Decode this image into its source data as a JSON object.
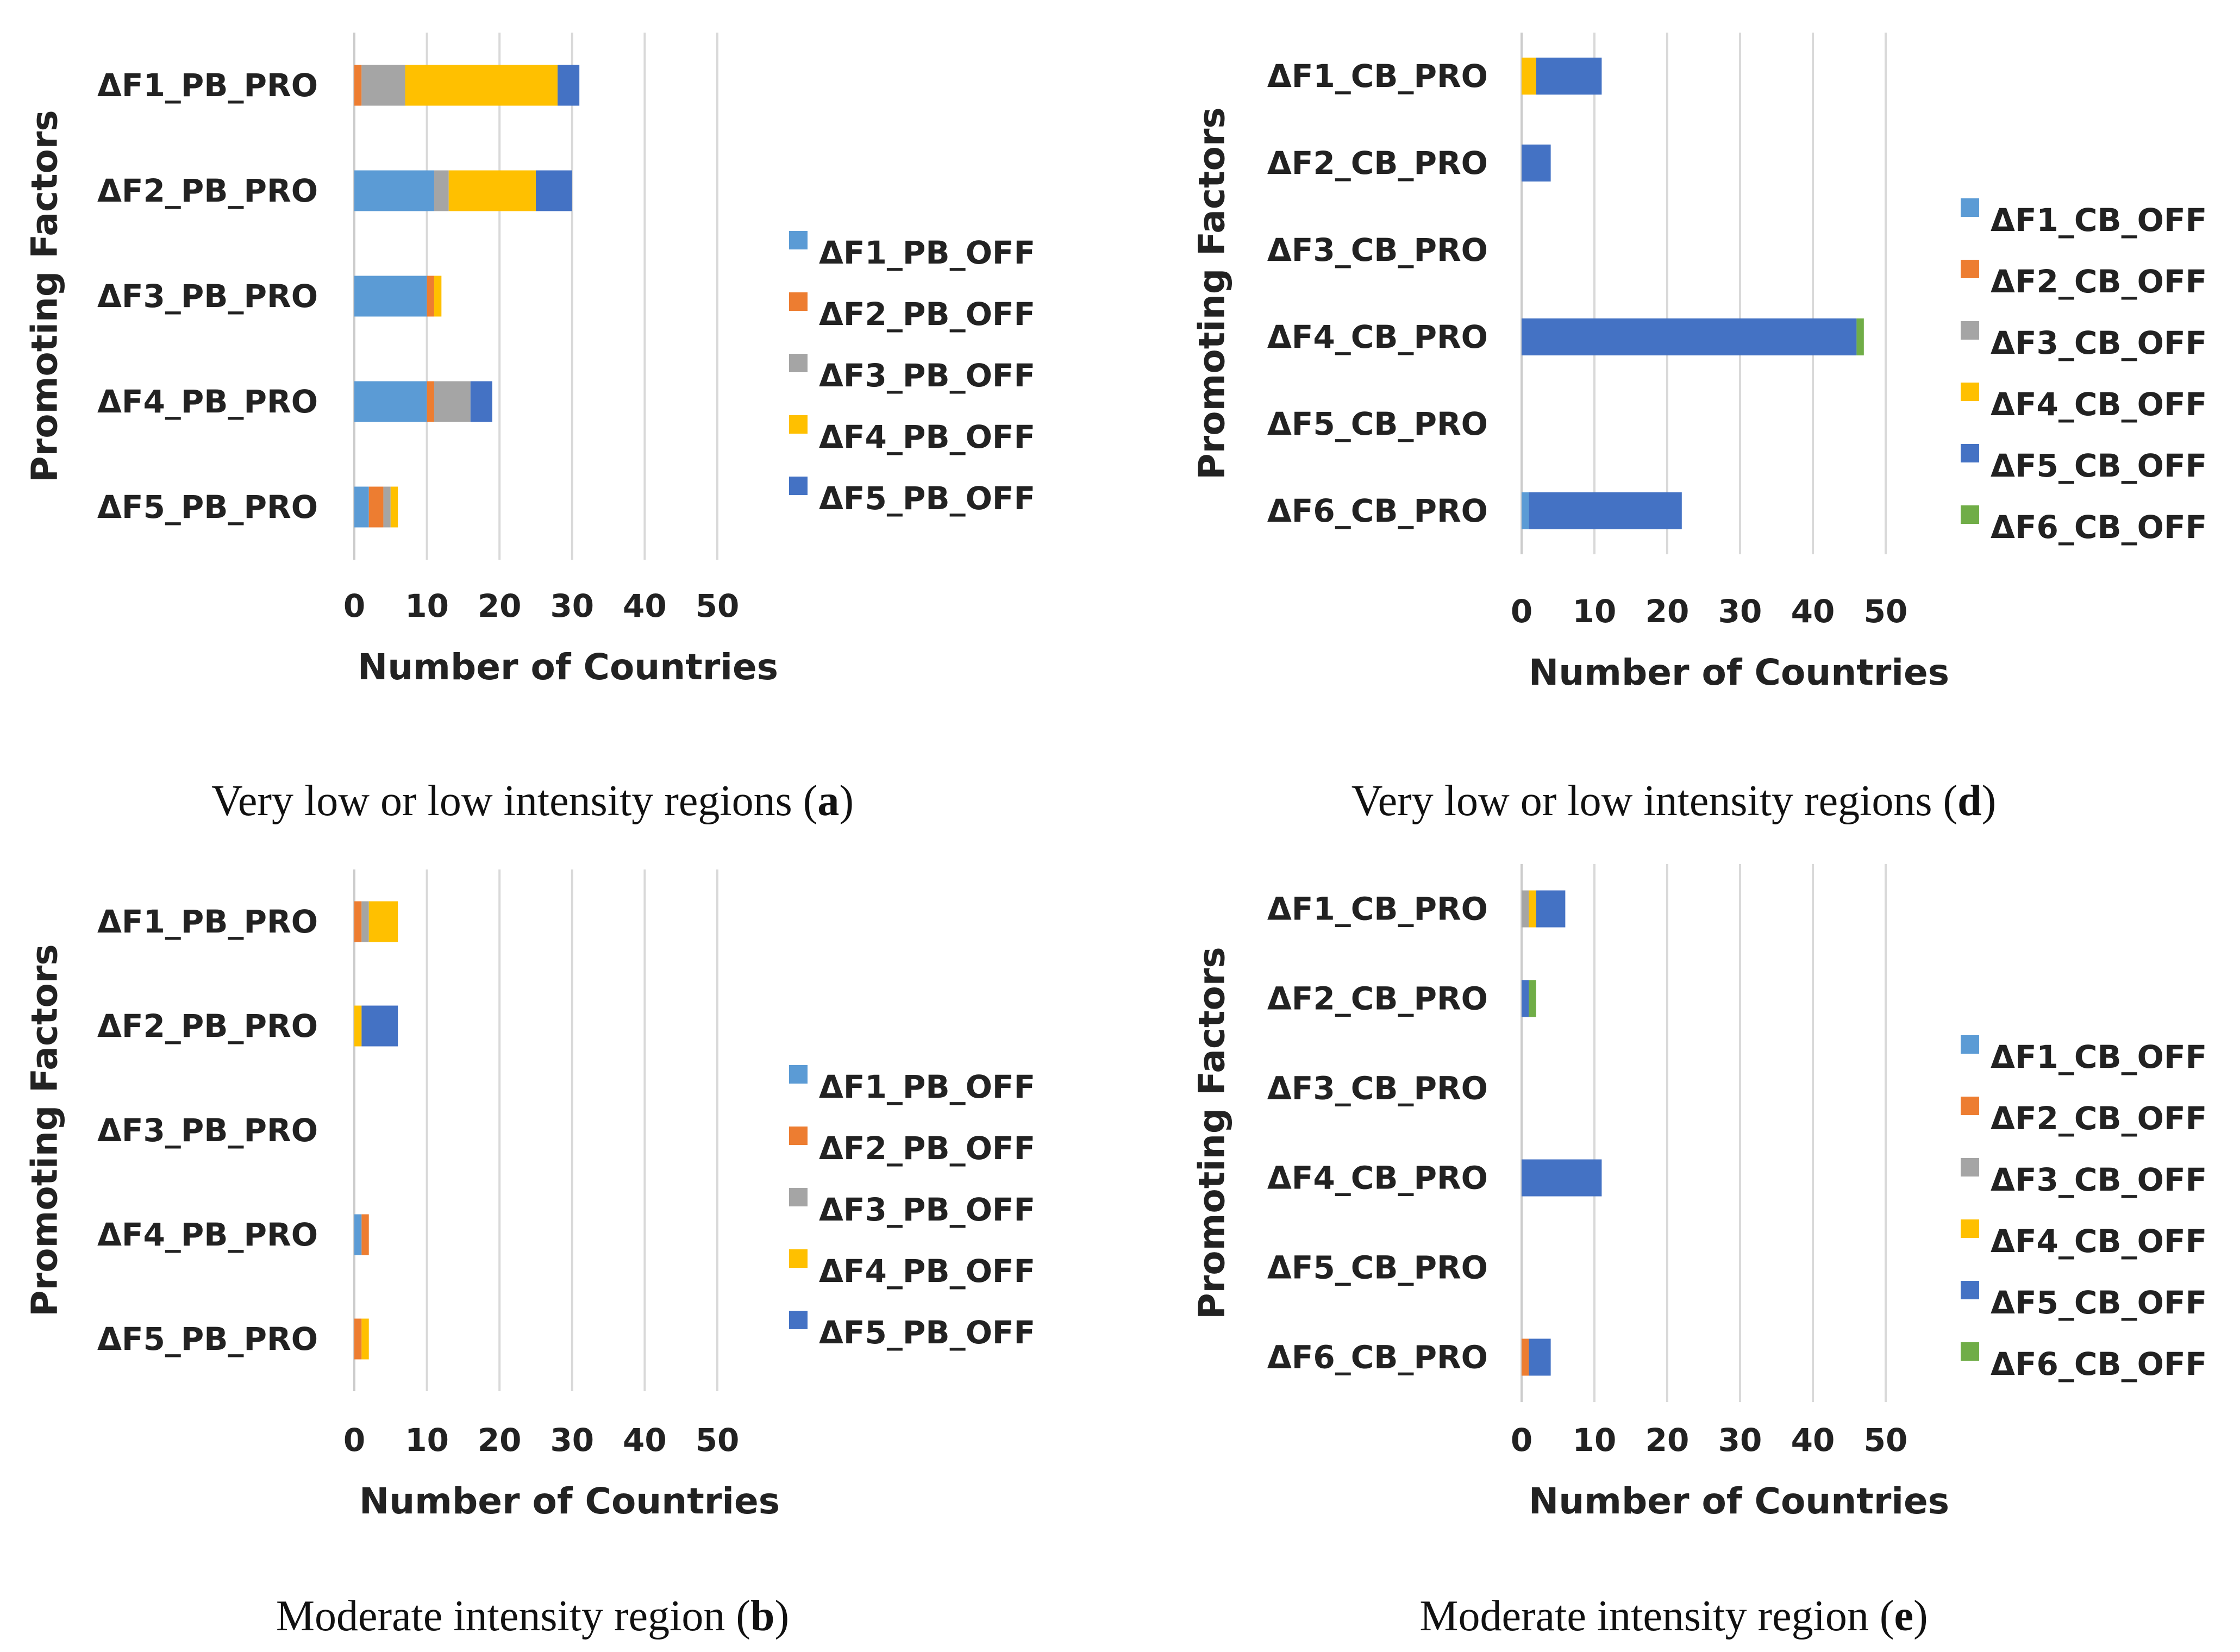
{
  "series_colors": {
    "F1": "#5b9bd5",
    "F2": "#ed7d31",
    "F3": "#a5a5a5",
    "F4": "#ffc000",
    "F5": "#4472c4",
    "F6": "#70ad47"
  },
  "chart_data": [
    {
      "id": "a",
      "type": "bar",
      "orientation": "horizontal",
      "stacked": true,
      "caption": {
        "text": "Very low or low intensity regions (",
        "letter": "a",
        "close": ")"
      },
      "xlabel": "Number of Countries",
      "ylabel": "Promoting Factors",
      "xlim": [
        0,
        50
      ],
      "xticks": [
        "0",
        "10",
        "20",
        "30",
        "40",
        "50"
      ],
      "grid": true,
      "legend": "right",
      "categories": [
        "ΔF1_PB_PRO",
        "ΔF2_PB_PRO",
        "ΔF3_PB_PRO",
        "ΔF4_PB_PRO",
        "ΔF5_PB_PRO"
      ],
      "series": [
        {
          "name": "ΔF1_PB_OFF",
          "key": "F1",
          "values": [
            0,
            11,
            10,
            10,
            2
          ]
        },
        {
          "name": "ΔF2_PB_OFF",
          "key": "F2",
          "values": [
            1,
            0,
            1,
            1,
            2
          ]
        },
        {
          "name": "ΔF3_PB_OFF",
          "key": "F3",
          "values": [
            6,
            2,
            0,
            5,
            1
          ]
        },
        {
          "name": "ΔF4_PB_OFF",
          "key": "F4",
          "values": [
            21,
            12,
            1,
            0,
            1
          ]
        },
        {
          "name": "ΔF5_PB_OFF",
          "key": "F5",
          "values": [
            3,
            5,
            0,
            3,
            0
          ]
        }
      ]
    },
    {
      "id": "d",
      "type": "bar",
      "orientation": "horizontal",
      "stacked": true,
      "caption": {
        "text": "Very low or low intensity regions (",
        "letter": "d",
        "close": ")"
      },
      "xlabel": "Number of Countries",
      "ylabel": "Promoting Factors",
      "xlim": [
        0,
        50
      ],
      "xticks": [
        "0",
        "10",
        "20",
        "30",
        "40",
        "50"
      ],
      "grid": true,
      "legend": "right",
      "categories": [
        "ΔF1_CB_PRO",
        "ΔF2_CB_PRO",
        "ΔF3_CB_PRO",
        "ΔF4_CB_PRO",
        "ΔF5_CB_PRO",
        "ΔF6_CB_PRO"
      ],
      "series": [
        {
          "name": "ΔF1_CB_OFF",
          "key": "F1",
          "values": [
            0,
            0,
            0,
            0,
            0,
            1
          ]
        },
        {
          "name": "ΔF2_CB_OFF",
          "key": "F2",
          "values": [
            0,
            0,
            0,
            0,
            0,
            0
          ]
        },
        {
          "name": "ΔF3_CB_OFF",
          "key": "F3",
          "values": [
            0,
            0,
            0,
            0,
            0,
            0
          ]
        },
        {
          "name": "ΔF4_CB_OFF",
          "key": "F4",
          "values": [
            2,
            0,
            0,
            0,
            0,
            0
          ]
        },
        {
          "name": "ΔF5_CB_OFF",
          "key": "F5",
          "values": [
            9,
            4,
            0,
            46,
            0,
            21
          ]
        },
        {
          "name": "ΔF6_CB_OFF",
          "key": "F6",
          "values": [
            0,
            0,
            0,
            1,
            0,
            0
          ]
        }
      ]
    },
    {
      "id": "b",
      "type": "bar",
      "orientation": "horizontal",
      "stacked": true,
      "caption": {
        "text": "Moderate intensity region (",
        "letter": "b",
        "close": ")"
      },
      "xlabel": "Number of Countries",
      "ylabel": "Promoting Factors",
      "xlim": [
        0,
        50
      ],
      "xticks": [
        "0",
        "10",
        "20",
        "30",
        "40",
        "50"
      ],
      "grid": true,
      "legend": "right",
      "categories": [
        "ΔF1_PB_PRO",
        "ΔF2_PB_PRO",
        "ΔF3_PB_PRO",
        "ΔF4_PB_PRO",
        "ΔF5_PB_PRO"
      ],
      "series": [
        {
          "name": "ΔF1_PB_OFF",
          "key": "F1",
          "values": [
            0,
            0,
            0,
            1,
            0
          ]
        },
        {
          "name": "ΔF2_PB_OFF",
          "key": "F2",
          "values": [
            1,
            0,
            0,
            1,
            1
          ]
        },
        {
          "name": "ΔF3_PB_OFF",
          "key": "F3",
          "values": [
            1,
            0,
            0,
            0,
            0
          ]
        },
        {
          "name": "ΔF4_PB_OFF",
          "key": "F4",
          "values": [
            4,
            1,
            0,
            0,
            1
          ]
        },
        {
          "name": "ΔF5_PB_OFF",
          "key": "F5",
          "values": [
            0,
            5,
            0,
            0,
            0
          ]
        }
      ]
    },
    {
      "id": "e",
      "type": "bar",
      "orientation": "horizontal",
      "stacked": true,
      "caption": {
        "text": "Moderate intensity region (",
        "letter": "e",
        "close": ")"
      },
      "xlabel": "Number of Countries",
      "ylabel": "Promoting Factors",
      "xlim": [
        0,
        50
      ],
      "xticks": [
        "0",
        "10",
        "20",
        "30",
        "40",
        "50"
      ],
      "grid": true,
      "legend": "right",
      "categories": [
        "ΔF1_CB_PRO",
        "ΔF2_CB_PRO",
        "ΔF3_CB_PRO",
        "ΔF4_CB_PRO",
        "ΔF5_CB_PRO",
        "ΔF6_CB_PRO"
      ],
      "series": [
        {
          "name": "ΔF1_CB_OFF",
          "key": "F1",
          "values": [
            0,
            0,
            0,
            0,
            0,
            0
          ]
        },
        {
          "name": "ΔF2_CB_OFF",
          "key": "F2",
          "values": [
            0,
            0,
            0,
            0,
            0,
            1
          ]
        },
        {
          "name": "ΔF3_CB_OFF",
          "key": "F3",
          "values": [
            1,
            0,
            0,
            0,
            0,
            0
          ]
        },
        {
          "name": "ΔF4_CB_OFF",
          "key": "F4",
          "values": [
            1,
            0,
            0,
            0,
            0,
            0
          ]
        },
        {
          "name": "ΔF5_CB_OFF",
          "key": "F5",
          "values": [
            4,
            1,
            0,
            11,
            0,
            3
          ]
        },
        {
          "name": "ΔF6_CB_OFF",
          "key": "F6",
          "values": [
            0,
            1,
            0,
            0,
            0,
            0
          ]
        }
      ]
    }
  ]
}
